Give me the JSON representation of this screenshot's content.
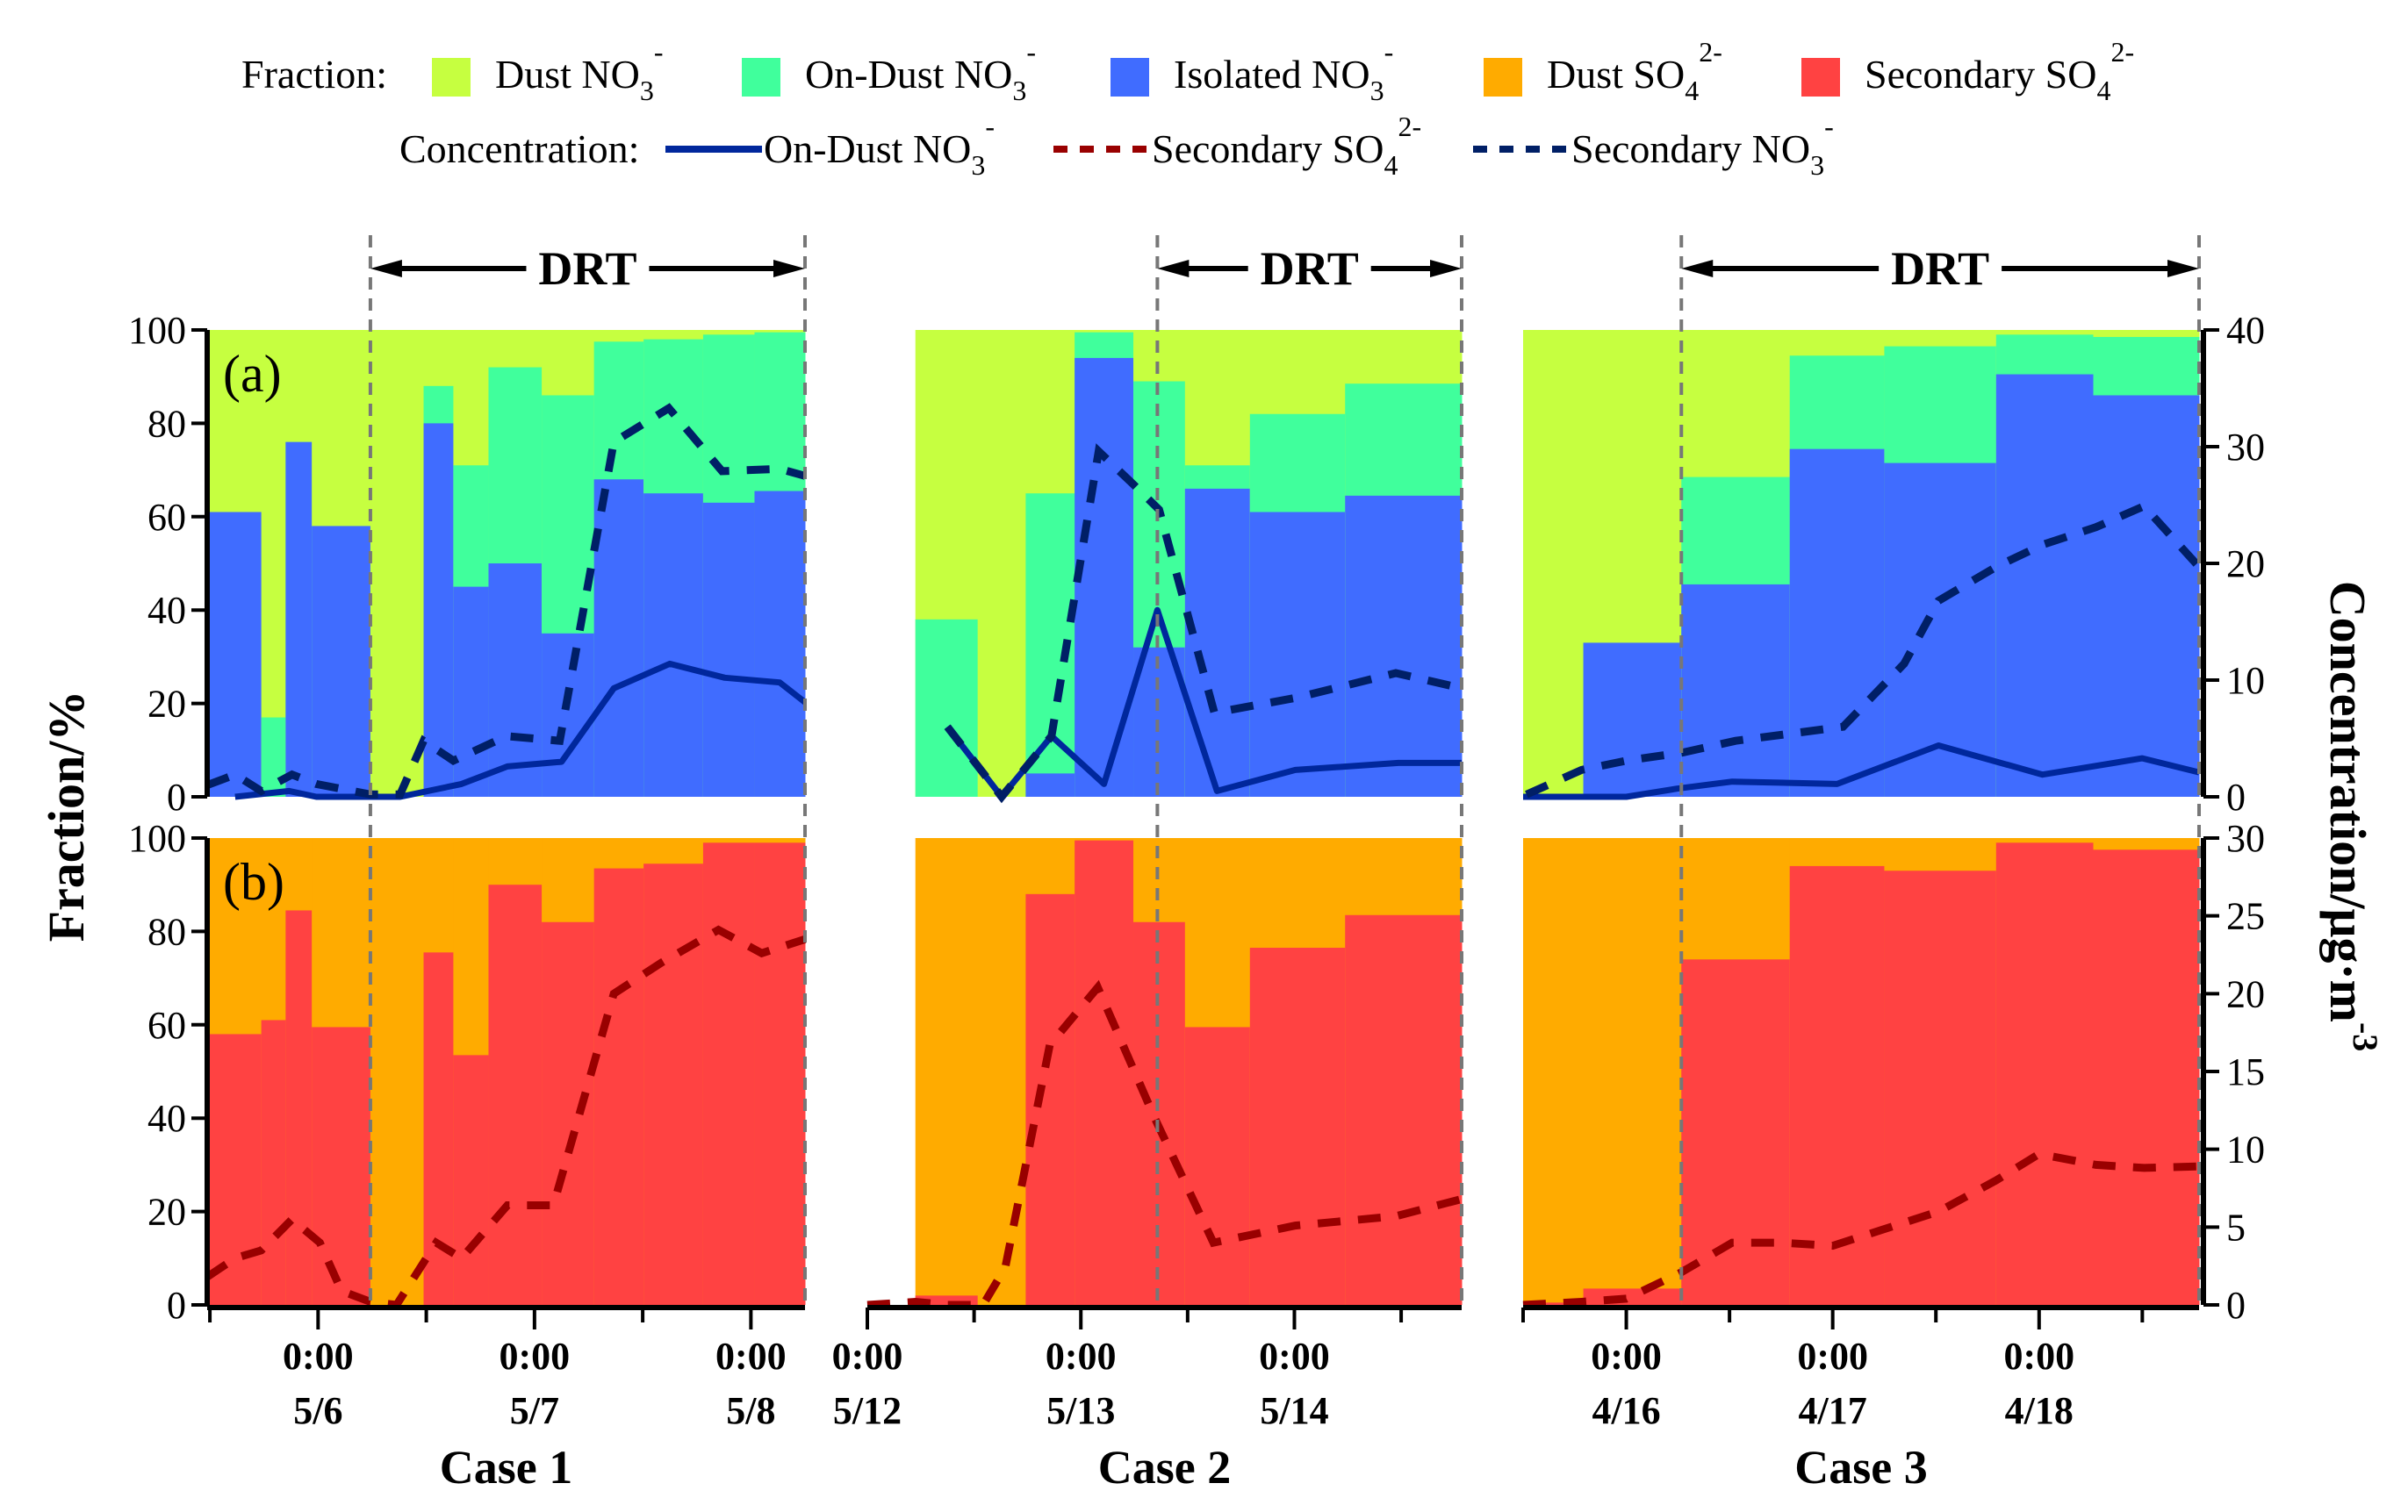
{
  "chart_data": {
    "type": "bar",
    "description": "Stacked step fraction bars with overlaid concentration lines, three cases, two panels",
    "legend": {
      "fraction_label": "Fraction:",
      "fraction_items": [
        {
          "key": "dust_no3",
          "text": "Dust NO",
          "sub": "3",
          "sup": "-",
          "color": "#c6ff40"
        },
        {
          "key": "ondust_no3",
          "text": "On-Dust NO",
          "sub": "3",
          "sup": "-",
          "color": "#40ff9c"
        },
        {
          "key": "isolated_no3",
          "text": "Isolated NO",
          "sub": "3",
          "sup": "-",
          "color": "#406cff"
        },
        {
          "key": "dust_so4",
          "text": "Dust SO",
          "sub": "4",
          "sup": "2-",
          "color": "#ffab00"
        },
        {
          "key": "secondary_so4",
          "text": "Secondary SO",
          "sub": "4",
          "sup": "2-",
          "color": "#ff4242"
        }
      ],
      "concentration_label": "Concentration:",
      "concentration_items": [
        {
          "key": "ondust_no3_conc",
          "text": "On-Dust NO",
          "sub": "3",
          "sup": "-",
          "color": "#00279c",
          "style": "solid"
        },
        {
          "key": "secondary_so4_conc",
          "text": "Secondary SO",
          "sub": "4",
          "sup": "2-",
          "color": "#990000",
          "style": "dashed"
        },
        {
          "key": "secondary_no3_conc",
          "text": "Secondary NO",
          "sub": "3",
          "sup": "-",
          "color": "#001f66",
          "style": "dashed"
        }
      ]
    },
    "axes": {
      "left_title": "Fraction/%",
      "right_title": "Concentration/μg·m",
      "right_title_sup": "-3",
      "panel_a": {
        "tag": "(a)",
        "left_ylim": [
          0,
          100
        ],
        "left_ticks": [
          0,
          20,
          40,
          60,
          80,
          100
        ],
        "right_ylim": [
          0,
          40
        ],
        "right_ticks": [
          0,
          10,
          20,
          30,
          40
        ]
      },
      "panel_b": {
        "tag": "(b)",
        "left_ylim": [
          0,
          100
        ],
        "left_ticks": [
          0,
          20,
          40,
          60,
          80,
          100
        ],
        "right_ylim": [
          0,
          30
        ],
        "right_ticks": [
          0,
          5,
          10,
          15,
          20,
          25,
          30
        ]
      },
      "x_unit": "hours relative to first labeled midnight of each case"
    },
    "drt_label": "DRT",
    "cases": [
      {
        "name": "Case 1",
        "xlim": [
          -12.3,
          54
        ],
        "ticks": [
          -12,
          0,
          12,
          24,
          36,
          48
        ],
        "tick_labels": [
          {
            "x": 0,
            "time": "0:00",
            "date": "5/6"
          },
          {
            "x": 24,
            "time": "0:00",
            "date": "5/7"
          },
          {
            "x": 48,
            "time": "0:00",
            "date": "5/8"
          }
        ],
        "drt": [
          5.8,
          54
        ],
        "bars": [
          {
            "x0": -12.3,
            "x1": -6.3,
            "isolated": 61,
            "ondust_top": 61,
            "so4_secondary": 58
          },
          {
            "x0": -6.3,
            "x1": -3.6,
            "isolated": 0,
            "ondust_top": 17,
            "so4_secondary": 61
          },
          {
            "x0": -3.6,
            "x1": -0.7,
            "isolated": 76,
            "ondust_top": 76,
            "so4_secondary": 84.5
          },
          {
            "x0": -0.7,
            "x1": 5.8,
            "isolated": 58,
            "ondust_top": 58,
            "so4_secondary": 59.5
          },
          {
            "x0": 5.8,
            "x1": 11.7,
            "isolated": 0,
            "ondust_top": 0,
            "so4_secondary": 0
          },
          {
            "x0": 11.7,
            "x1": 15,
            "isolated": 80,
            "ondust_top": 88,
            "so4_secondary": 75.5
          },
          {
            "x0": 15,
            "x1": 18.9,
            "isolated": 45,
            "ondust_top": 71,
            "so4_secondary": 53.5
          },
          {
            "x0": 18.9,
            "x1": 24.8,
            "isolated": 50,
            "ondust_top": 92,
            "so4_secondary": 90
          },
          {
            "x0": 24.8,
            "x1": 30.6,
            "isolated": 35,
            "ondust_top": 86,
            "so4_secondary": 82
          },
          {
            "x0": 30.6,
            "x1": 36.1,
            "isolated": 68,
            "ondust_top": 97.5,
            "so4_secondary": 93.5
          },
          {
            "x0": 36.1,
            "x1": 42.7,
            "isolated": 65,
            "ondust_top": 98,
            "so4_secondary": 94.5
          },
          {
            "x0": 42.7,
            "x1": 48.4,
            "isolated": 63,
            "ondust_top": 99,
            "so4_secondary": 99
          },
          {
            "x0": 48.4,
            "x1": 54,
            "isolated": 65.5,
            "ondust_top": 99.5,
            "so4_secondary": 99
          }
        ],
        "secondary_no3": [
          [
            -12.3,
            1
          ],
          [
            -9.2,
            1.9
          ],
          [
            -6.3,
            0.5
          ],
          [
            -2.9,
            1.9
          ],
          [
            -0.2,
            1.1
          ],
          [
            5.8,
            0.2
          ],
          [
            9.1,
            0.2
          ],
          [
            11.7,
            4.8
          ],
          [
            15,
            3.1
          ],
          [
            20.9,
            5.2
          ],
          [
            26.8,
            4.8
          ],
          [
            32.8,
            30.4
          ],
          [
            38.9,
            33.3
          ],
          [
            44.8,
            27.9
          ],
          [
            51.2,
            28.1
          ],
          [
            54,
            27.5
          ]
        ],
        "ondust_no3": [
          [
            -9.2,
            0
          ],
          [
            -3.2,
            0.5
          ],
          [
            -0.2,
            0
          ],
          [
            5.8,
            0
          ],
          [
            9.1,
            0
          ],
          [
            15.9,
            1.1
          ],
          [
            21,
            2.6
          ],
          [
            27,
            3
          ],
          [
            32.8,
            9.3
          ],
          [
            39,
            11.4
          ],
          [
            45.1,
            10.2
          ],
          [
            51.2,
            9.8
          ],
          [
            54,
            8.1
          ]
        ],
        "secondary_so4": [
          [
            -12.3,
            1.8
          ],
          [
            -9.2,
            3
          ],
          [
            -6.3,
            3.5
          ],
          [
            -2.9,
            5.5
          ],
          [
            0.2,
            4
          ],
          [
            2.6,
            0.9
          ],
          [
            5.8,
            0.2
          ],
          [
            8.7,
            0
          ],
          [
            13.1,
            4
          ],
          [
            15.9,
            3
          ],
          [
            21,
            6.4
          ],
          [
            26.1,
            6.4
          ],
          [
            32.8,
            20
          ],
          [
            38.1,
            22
          ],
          [
            44.4,
            24.1
          ],
          [
            49.2,
            22.6
          ],
          [
            54,
            23.5
          ]
        ]
      },
      {
        "name": "Case 2",
        "xlim": [
          0,
          66.8
        ],
        "ticks": [
          0,
          12,
          24,
          36,
          48,
          60
        ],
        "tick_labels": [
          {
            "x": 0,
            "time": "0:00",
            "date": "5/12"
          },
          {
            "x": 24,
            "time": "0:00",
            "date": "5/13"
          },
          {
            "x": 48,
            "time": "0:00",
            "date": "5/14"
          }
        ],
        "drt": [
          32.6,
          66.8
        ],
        "bars": [
          {
            "x0": 5.4,
            "x1": 12.4,
            "isolated": 0,
            "ondust_top": 38,
            "so4_secondary": 2
          },
          {
            "x0": 12.4,
            "x1": 17.8,
            "isolated": 0,
            "ondust_top": 0,
            "so4_secondary": 0
          },
          {
            "x0": 17.8,
            "x1": 23.3,
            "isolated": 5,
            "ondust_top": 65,
            "so4_secondary": 88
          },
          {
            "x0": 23.3,
            "x1": 29.9,
            "isolated": 94,
            "ondust_top": 99.5,
            "so4_secondary": 99.5
          },
          {
            "x0": 29.9,
            "x1": 35.7,
            "isolated": 32,
            "ondust_top": 89,
            "so4_secondary": 82
          },
          {
            "x0": 35.7,
            "x1": 43,
            "isolated": 66,
            "ondust_top": 71,
            "so4_secondary": 59.5
          },
          {
            "x0": 43,
            "x1": 53.7,
            "isolated": 61,
            "ondust_top": 82,
            "so4_secondary": 76.5
          },
          {
            "x0": 53.7,
            "x1": 66.8,
            "isolated": 64.5,
            "ondust_top": 88.5,
            "so4_secondary": 83.5
          }
        ],
        "secondary_no3": [
          [
            9,
            6
          ],
          [
            15.1,
            0
          ],
          [
            20.7,
            5.2
          ],
          [
            26,
            29.6
          ],
          [
            30,
            26.7
          ],
          [
            32.8,
            24.6
          ],
          [
            39,
            7.2
          ],
          [
            48.3,
            8.5
          ],
          [
            59.4,
            10.6
          ],
          [
            66.8,
            9.3
          ]
        ],
        "ondust_no3": [
          [
            9,
            6
          ],
          [
            15.1,
            0
          ],
          [
            20.7,
            5.2
          ],
          [
            26.6,
            1.1
          ],
          [
            32.6,
            16
          ],
          [
            39.3,
            0.5
          ],
          [
            48.1,
            2.3
          ],
          [
            59.7,
            2.9
          ],
          [
            66.8,
            2.9
          ]
        ],
        "secondary_so4": [
          [
            0,
            0
          ],
          [
            5.4,
            0.2
          ],
          [
            9,
            0
          ],
          [
            13,
            0
          ],
          [
            15.5,
            2.4
          ],
          [
            20.5,
            16.7
          ],
          [
            25.9,
            20.4
          ],
          [
            28.5,
            17
          ],
          [
            32.3,
            12
          ],
          [
            38.9,
            4
          ],
          [
            48.1,
            5.1
          ],
          [
            59.4,
            5.7
          ],
          [
            66.8,
            6.8
          ]
        ]
      },
      {
        "name": "Case 3",
        "xlim": [
          -12,
          66.6
        ],
        "ticks": [
          -12,
          0,
          12,
          24,
          36,
          48,
          60
        ],
        "tick_labels": [
          {
            "x": 0,
            "time": "0:00",
            "date": "4/16"
          },
          {
            "x": 24,
            "time": "0:00",
            "date": "4/17"
          },
          {
            "x": 48,
            "time": "0:00",
            "date": "4/18"
          }
        ],
        "drt": [
          6.4,
          66.6
        ],
        "bars": [
          {
            "x0": -12,
            "x1": -5,
            "isolated": 0,
            "ondust_top": 0,
            "so4_secondary": 0.5
          },
          {
            "x0": -5,
            "x1": 6.4,
            "isolated": 33,
            "ondust_top": 33,
            "so4_secondary": 3.5
          },
          {
            "x0": 6.4,
            "x1": 19,
            "isolated": 45.5,
            "ondust_top": 68.5,
            "so4_secondary": 74
          },
          {
            "x0": 19,
            "x1": 30,
            "isolated": 74.5,
            "ondust_top": 94.5,
            "so4_secondary": 94
          },
          {
            "x0": 30,
            "x1": 43,
            "isolated": 71.5,
            "ondust_top": 96.5,
            "so4_secondary": 93
          },
          {
            "x0": 43,
            "x1": 54.3,
            "isolated": 90.5,
            "ondust_top": 99,
            "so4_secondary": 99
          },
          {
            "x0": 54.3,
            "x1": 66.6,
            "isolated": 86,
            "ondust_top": 98.5,
            "so4_secondary": 97.5
          }
        ],
        "secondary_no3": [
          [
            -11.6,
            0.2
          ],
          [
            -5.2,
            2.3
          ],
          [
            0,
            3.1
          ],
          [
            6.6,
            3.8
          ],
          [
            12.7,
            4.8
          ],
          [
            25.2,
            6
          ],
          [
            32.3,
            11.4
          ],
          [
            36.3,
            16.8
          ],
          [
            43,
            19.7
          ],
          [
            48.4,
            21.6
          ],
          [
            54.6,
            23.1
          ],
          [
            60.2,
            24.9
          ],
          [
            66.6,
            19.7
          ]
        ],
        "ondust_no3": [
          [
            -12,
            0
          ],
          [
            0,
            0
          ],
          [
            5.9,
            0.7
          ],
          [
            12.3,
            1.3
          ],
          [
            24.5,
            1.1
          ],
          [
            36.3,
            4.4
          ],
          [
            48.4,
            1.9
          ],
          [
            60,
            3.3
          ],
          [
            66.6,
            2.1
          ]
        ],
        "secondary_so4": [
          [
            -12,
            0
          ],
          [
            -5.2,
            0.2
          ],
          [
            0,
            0.4
          ],
          [
            6.4,
            2.1
          ],
          [
            12.3,
            4
          ],
          [
            18,
            4
          ],
          [
            24,
            3.8
          ],
          [
            36.3,
            6
          ],
          [
            43,
            8
          ],
          [
            48,
            9.7
          ],
          [
            54.6,
            9
          ],
          [
            60.2,
            8.8
          ],
          [
            66.6,
            8.9
          ]
        ]
      }
    ]
  }
}
